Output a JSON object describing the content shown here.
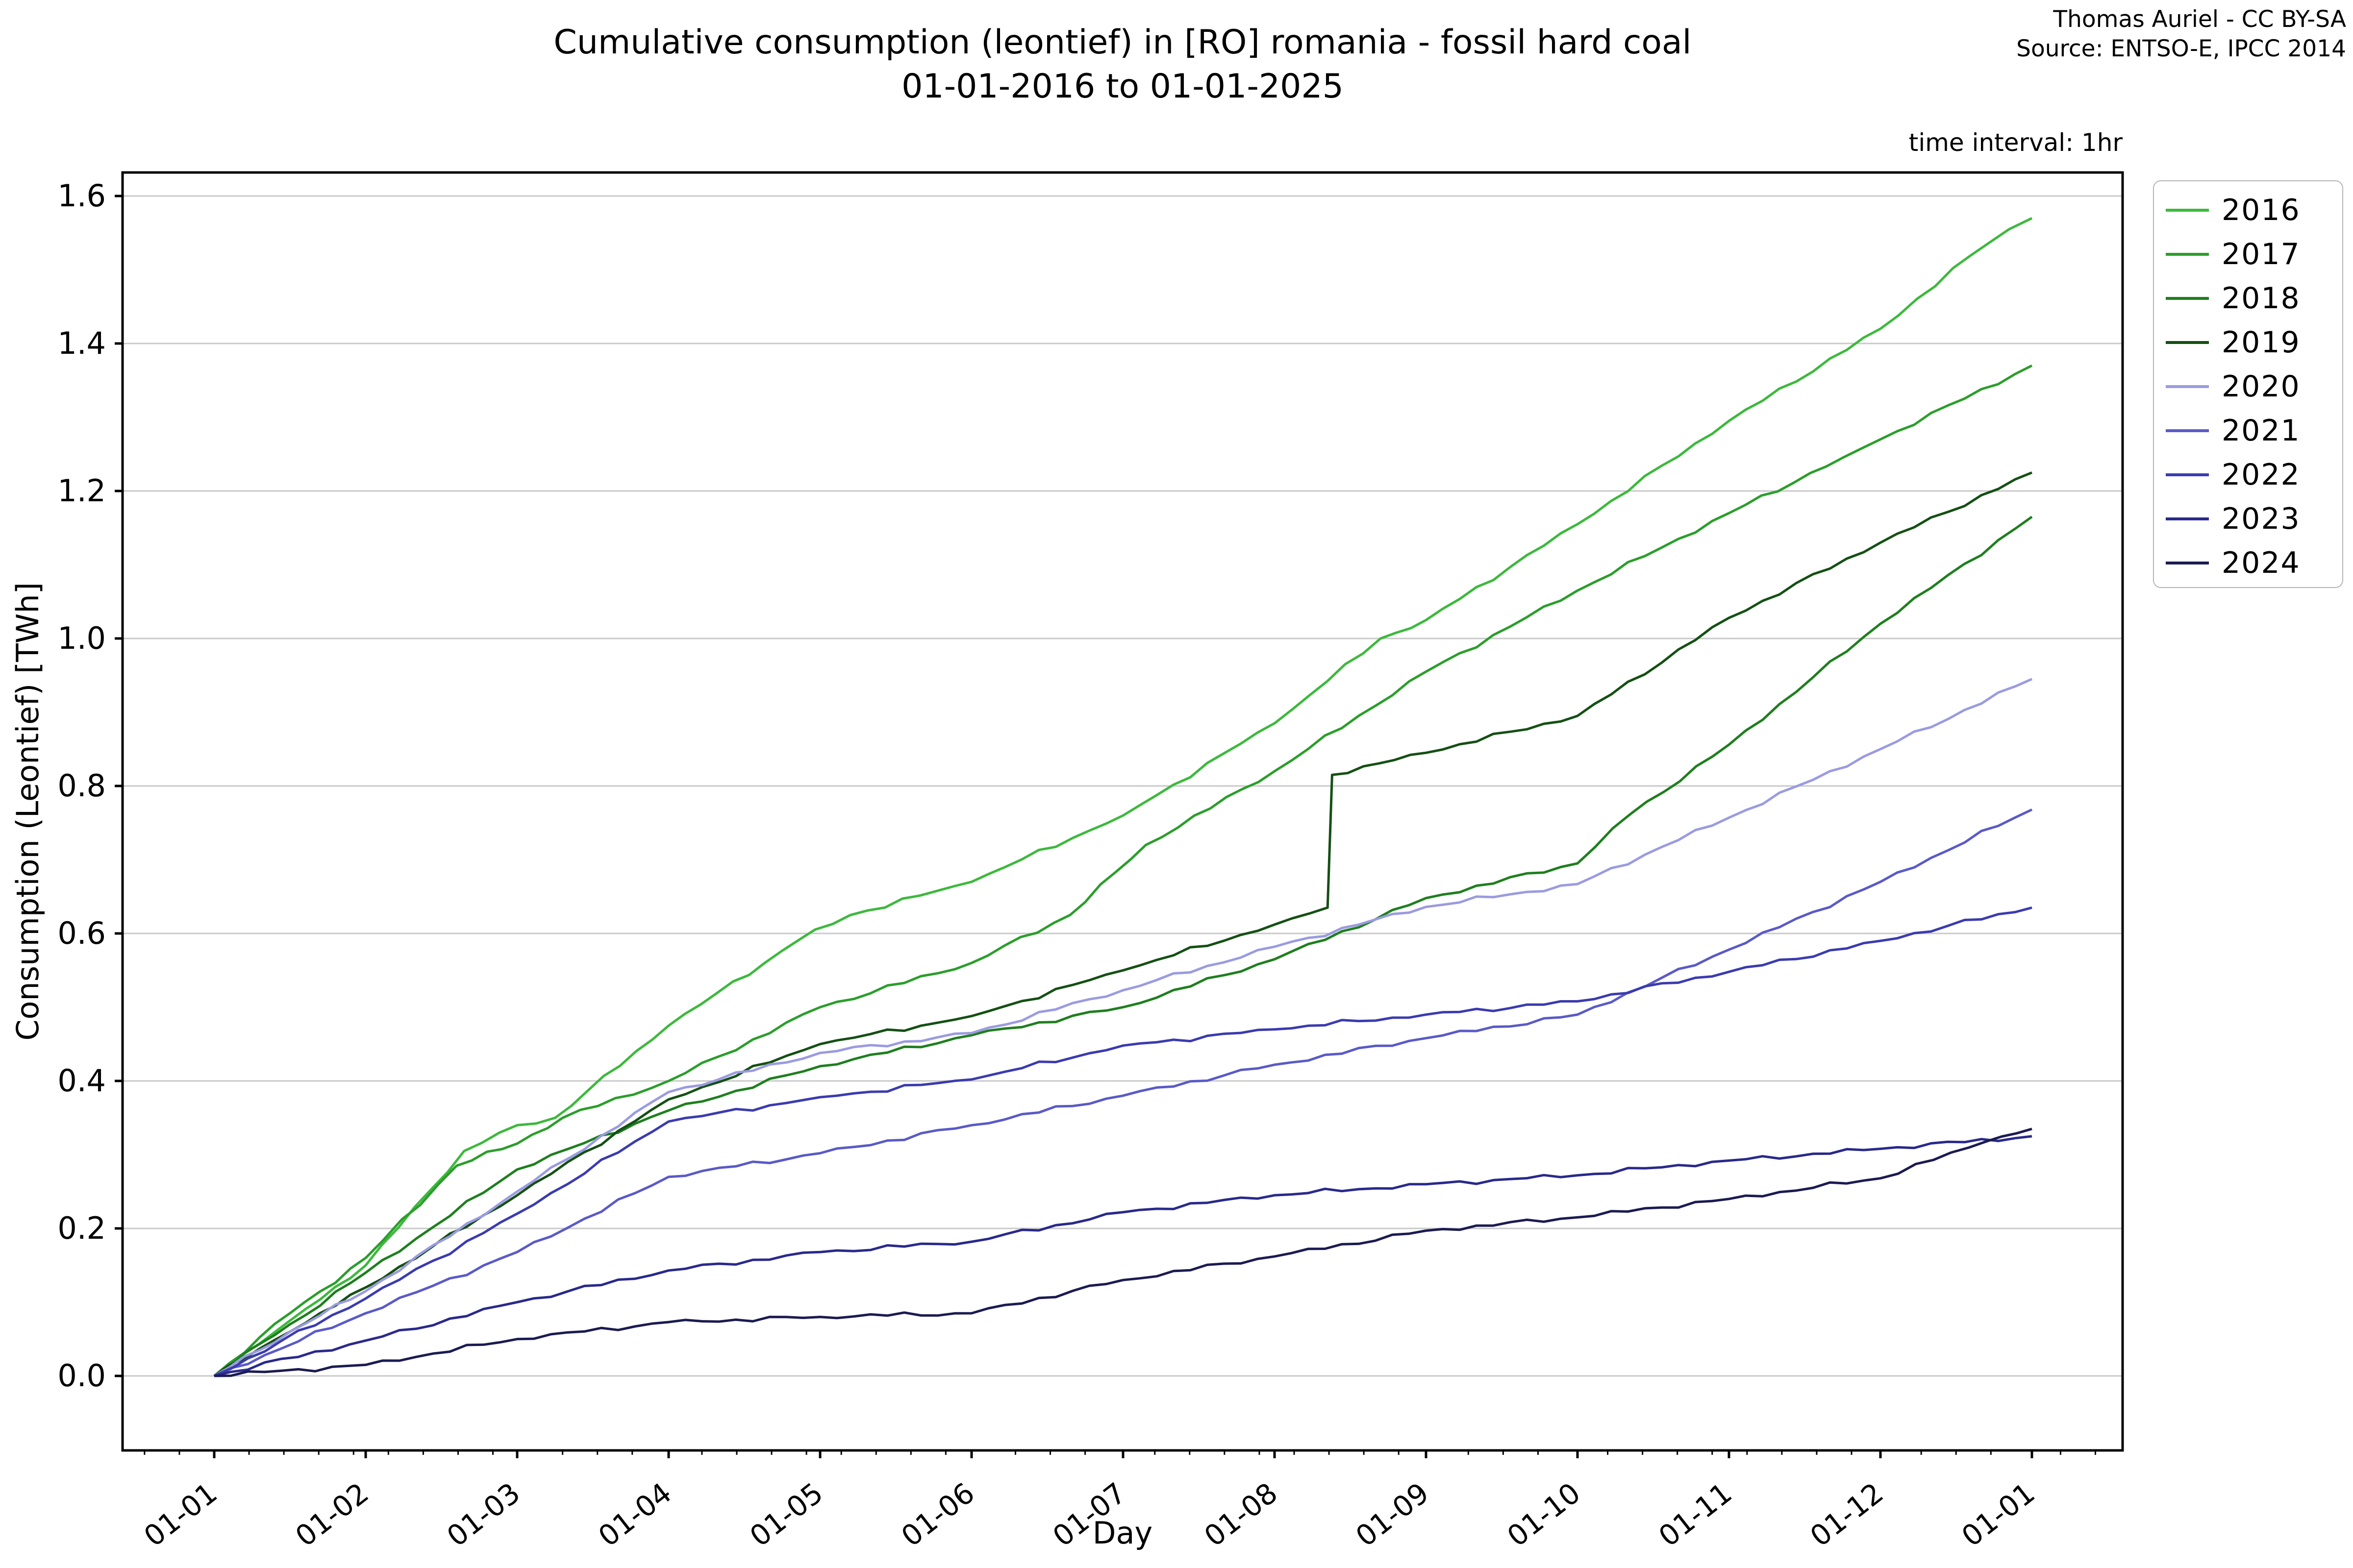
{
  "header": {
    "title_line1": "Cumulative consumption (leontief) in [RO] romania - fossil hard coal",
    "title_line2": "01-01-2016 to 01-01-2025",
    "attribution_line1": "Thomas Auriel - CC BY-SA",
    "attribution_line2": "Source: ENTSO-E, IPCC 2014",
    "time_interval_note": "time interval: 1hr"
  },
  "colors": {
    "background": "#ffffff",
    "grid": "#c9c9c9",
    "spine": "#000000",
    "text": "#000000"
  },
  "chart_data": {
    "type": "line",
    "title": "Cumulative consumption (leontief) in [RO] romania - fossil hard coal 01-01-2016 to 01-01-2025",
    "xlabel": "Day",
    "ylabel": "Consumption (Leontief) [TWh]",
    "x_tick_labels": [
      "01-01",
      "01-02",
      "01-03",
      "01-04",
      "01-05",
      "01-06",
      "01-07",
      "01-08",
      "01-09",
      "01-10",
      "01-11",
      "01-12",
      "01-01"
    ],
    "y_ticks": [
      0.0,
      0.2,
      0.4,
      0.6,
      0.8,
      1.0,
      1.2,
      1.4,
      1.6
    ],
    "ylim": [
      -0.105,
      1.632
    ],
    "xlim_months": [
      -0.6,
      12.6
    ],
    "grid": "horizontal gridlines only",
    "legend_position": "outside upper right",
    "x_unit": "month index within year (0 = Jan 1, 12 = next Jan 1); each series is one calendar year of hourly cumulative data",
    "y_unit": "TWh",
    "series": [
      {
        "name": "2016",
        "color": "#3cb93c",
        "final_value": 1.57,
        "points": [
          [
            0,
            0
          ],
          [
            0.5,
            0.075
          ],
          [
            1,
            0.15
          ],
          [
            1.65,
            0.305
          ],
          [
            2,
            0.34
          ],
          [
            2.25,
            0.35
          ],
          [
            3,
            0.475
          ],
          [
            3.85,
            0.59
          ],
          [
            4.2,
            0.625
          ],
          [
            5,
            0.67
          ],
          [
            6,
            0.76
          ],
          [
            7,
            0.885
          ],
          [
            7.7,
            1.0
          ],
          [
            8,
            1.025
          ],
          [
            9,
            1.155
          ],
          [
            10,
            1.295
          ],
          [
            11,
            1.42
          ],
          [
            11.6,
            1.52
          ],
          [
            11.85,
            1.555
          ],
          [
            12,
            1.57
          ]
        ]
      },
      {
        "name": "2017",
        "color": "#2b9e2b",
        "final_value": 1.37,
        "points": [
          [
            0,
            0
          ],
          [
            0.5,
            0.085
          ],
          [
            1,
            0.16
          ],
          [
            1.6,
            0.285
          ],
          [
            2,
            0.315
          ],
          [
            2.3,
            0.35
          ],
          [
            3,
            0.4
          ],
          [
            4,
            0.5
          ],
          [
            5,
            0.56
          ],
          [
            5.65,
            0.625
          ],
          [
            6.15,
            0.72
          ],
          [
            7,
            0.82
          ],
          [
            8,
            0.955
          ],
          [
            9,
            1.065
          ],
          [
            10,
            1.17
          ],
          [
            10.75,
            1.245
          ],
          [
            11,
            1.27
          ],
          [
            12,
            1.37
          ]
        ]
      },
      {
        "name": "2018",
        "color": "#1e7f1e",
        "final_value": 1.17,
        "points": [
          [
            0,
            0
          ],
          [
            0.5,
            0.07
          ],
          [
            1,
            0.14
          ],
          [
            2,
            0.28
          ],
          [
            3,
            0.36
          ],
          [
            4,
            0.42
          ],
          [
            5,
            0.462
          ],
          [
            6,
            0.5
          ],
          [
            7,
            0.565
          ],
          [
            8,
            0.648
          ],
          [
            9,
            0.695
          ],
          [
            9.35,
            0.762
          ],
          [
            10,
            0.856
          ],
          [
            11,
            1.02
          ],
          [
            12,
            1.165
          ]
        ]
      },
      {
        "name": "2019",
        "color": "#145014",
        "final_value": 1.23,
        "points": [
          [
            0,
            0
          ],
          [
            0.5,
            0.06
          ],
          [
            1,
            0.12
          ],
          [
            2,
            0.245
          ],
          [
            3,
            0.375
          ],
          [
            4,
            0.45
          ],
          [
            5,
            0.488
          ],
          [
            6,
            0.55
          ],
          [
            7,
            0.612
          ],
          [
            7.35,
            0.635
          ],
          [
            7.38,
            0.815
          ],
          [
            8,
            0.845
          ],
          [
            9,
            0.895
          ],
          [
            10,
            1.028
          ],
          [
            11,
            1.13
          ],
          [
            12,
            1.225
          ]
        ]
      },
      {
        "name": "2020",
        "color": "#9b9be1",
        "final_value": 0.95,
        "points": [
          [
            0,
            0
          ],
          [
            0.5,
            0.06
          ],
          [
            1,
            0.115
          ],
          [
            2,
            0.25
          ],
          [
            3,
            0.385
          ],
          [
            4,
            0.438
          ],
          [
            5,
            0.465
          ],
          [
            6,
            0.523
          ],
          [
            7,
            0.582
          ],
          [
            8,
            0.636
          ],
          [
            9,
            0.667
          ],
          [
            10,
            0.757
          ],
          [
            11,
            0.85
          ],
          [
            12,
            0.945
          ]
        ]
      },
      {
        "name": "2021",
        "color": "#5a5ac8",
        "final_value": 0.77,
        "points": [
          [
            0,
            0
          ],
          [
            1,
            0.085
          ],
          [
            2,
            0.168
          ],
          [
            3,
            0.27
          ],
          [
            4,
            0.302
          ],
          [
            5,
            0.34
          ],
          [
            6,
            0.38
          ],
          [
            7,
            0.422
          ],
          [
            8,
            0.458
          ],
          [
            9,
            0.49
          ],
          [
            10,
            0.578
          ],
          [
            11,
            0.67
          ],
          [
            12,
            0.768
          ]
        ]
      },
      {
        "name": "2022",
        "color": "#3b3bb0",
        "final_value": 0.64,
        "points": [
          [
            0,
            0
          ],
          [
            1,
            0.105
          ],
          [
            2,
            0.22
          ],
          [
            3,
            0.345
          ],
          [
            4,
            0.378
          ],
          [
            5,
            0.402
          ],
          [
            6,
            0.448
          ],
          [
            7,
            0.47
          ],
          [
            8,
            0.49
          ],
          [
            9,
            0.508
          ],
          [
            10,
            0.548
          ],
          [
            11,
            0.59
          ],
          [
            12,
            0.635
          ]
        ]
      },
      {
        "name": "2023",
        "color": "#29298c",
        "final_value": 0.325,
        "points": [
          [
            0,
            0
          ],
          [
            1,
            0.048
          ],
          [
            2,
            0.1
          ],
          [
            3,
            0.143
          ],
          [
            4,
            0.168
          ],
          [
            5,
            0.182
          ],
          [
            6,
            0.222
          ],
          [
            7,
            0.245
          ],
          [
            8,
            0.26
          ],
          [
            9,
            0.272
          ],
          [
            10,
            0.292
          ],
          [
            11,
            0.308
          ],
          [
            12,
            0.325
          ]
        ]
      },
      {
        "name": "2024",
        "color": "#1b1b52",
        "final_value": 0.335,
        "points": [
          [
            0,
            0
          ],
          [
            1,
            0.015
          ],
          [
            2,
            0.05
          ],
          [
            3,
            0.073
          ],
          [
            4,
            0.08
          ],
          [
            5,
            0.085
          ],
          [
            6,
            0.13
          ],
          [
            7,
            0.162
          ],
          [
            8,
            0.197
          ],
          [
            9,
            0.215
          ],
          [
            10,
            0.24
          ],
          [
            11,
            0.268
          ],
          [
            11.7,
            0.318
          ],
          [
            12,
            0.335
          ]
        ]
      }
    ]
  },
  "legend": {
    "entries": [
      {
        "label": "2016",
        "color": "#3cb93c"
      },
      {
        "label": "2017",
        "color": "#2b9e2b"
      },
      {
        "label": "2018",
        "color": "#1e7f1e"
      },
      {
        "label": "2019",
        "color": "#145014"
      },
      {
        "label": "2020",
        "color": "#9b9be1"
      },
      {
        "label": "2021",
        "color": "#5a5ac8"
      },
      {
        "label": "2022",
        "color": "#3b3bb0"
      },
      {
        "label": "2023",
        "color": "#29298c"
      },
      {
        "label": "2024",
        "color": "#1b1b52"
      }
    ]
  }
}
